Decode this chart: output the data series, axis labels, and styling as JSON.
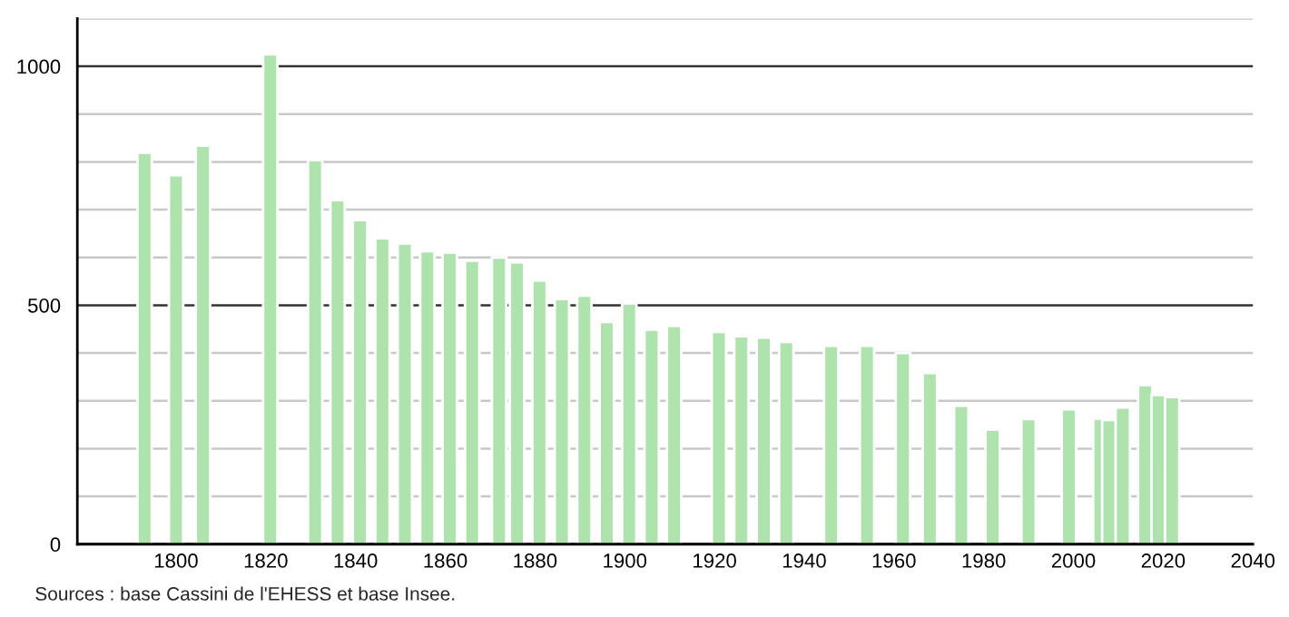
{
  "chart_data": {
    "type": "bar",
    "color": "#aee3ae",
    "x": [
      1793,
      1800,
      1806,
      1821,
      1831,
      1836,
      1841,
      1846,
      1851,
      1856,
      1861,
      1866,
      1872,
      1876,
      1881,
      1886,
      1891,
      1896,
      1901,
      1906,
      1911,
      1921,
      1926,
      1931,
      1936,
      1946,
      1954,
      1962,
      1968,
      1975,
      1982,
      1990,
      1999,
      2006,
      2008,
      2011,
      2016,
      2019,
      2022
    ],
    "values": [
      819,
      772,
      834,
      1025,
      804,
      720,
      678,
      640,
      629,
      613,
      610,
      593,
      600,
      590,
      552,
      513,
      520,
      465,
      504,
      449,
      457,
      444,
      435,
      432,
      423,
      415,
      415,
      400,
      358,
      290,
      240,
      262,
      282,
      263,
      260,
      286,
      333,
      312,
      308
    ],
    "xlim": [
      1778,
      2040
    ],
    "xticks": [
      1800,
      1820,
      1840,
      1860,
      1880,
      1900,
      1920,
      1940,
      1960,
      1980,
      2000,
      2020,
      2040
    ],
    "ylim": [
      0,
      1100
    ],
    "yticks": [
      0,
      {
        "value": 100,
        "label": null
      },
      {
        "value": 200,
        "label": null
      },
      {
        "value": 300,
        "label": null
      },
      {
        "value": 400,
        "label": null
      },
      500,
      {
        "value": 600,
        "label": null
      },
      {
        "value": 700,
        "label": null
      },
      {
        "value": 800,
        "label": null
      },
      {
        "value": 900,
        "label": null
      },
      1000,
      {
        "value": 1100,
        "label": null
      }
    ],
    "grid": "y",
    "annotations": [
      "Sources : base Cassini de l'EHESS et base Insee."
    ]
  }
}
